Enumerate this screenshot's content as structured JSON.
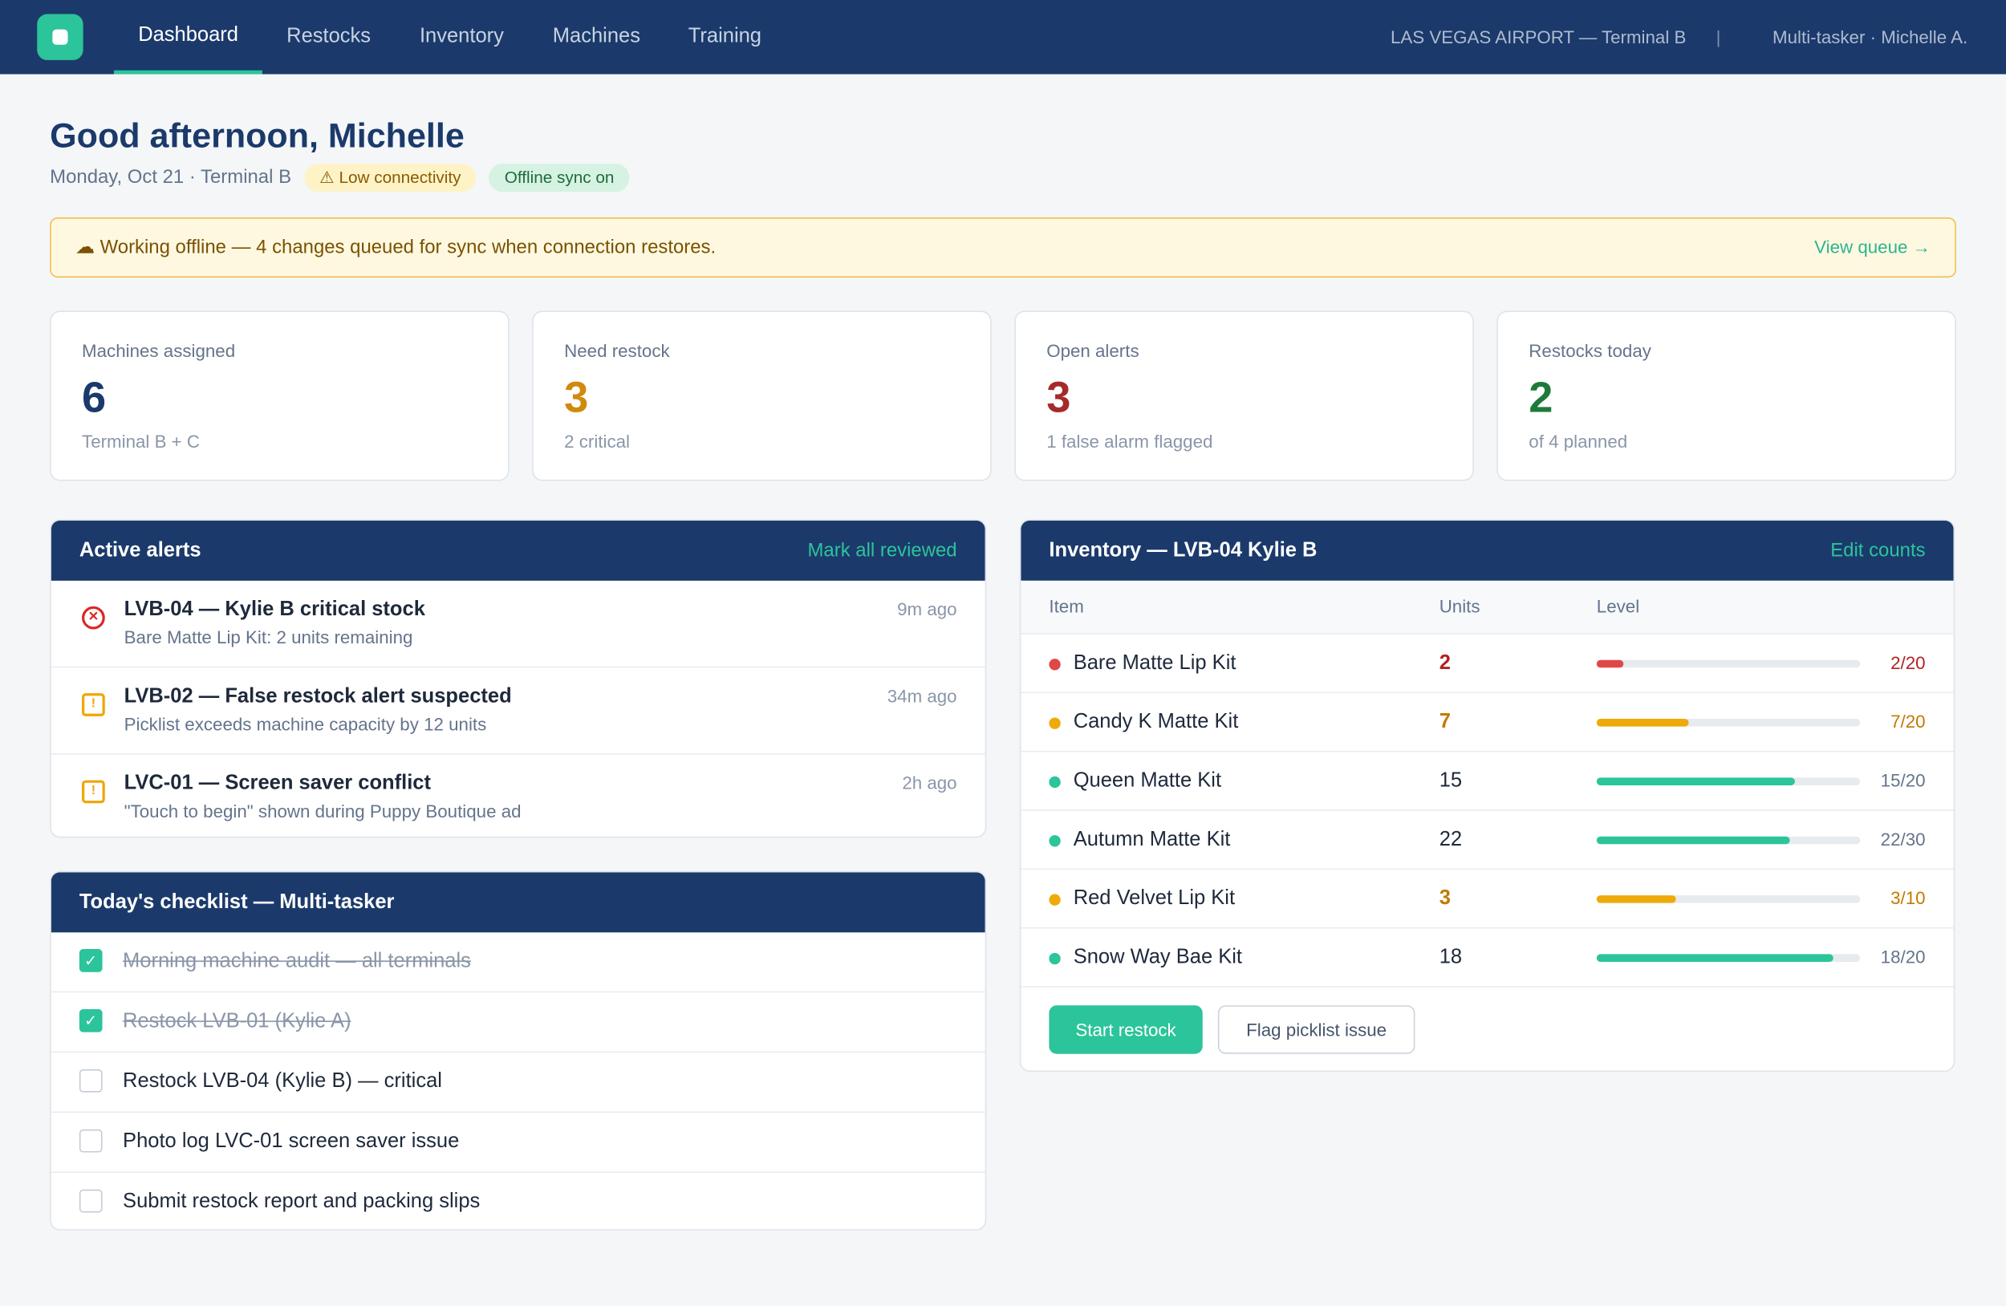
{
  "nav": {
    "tabs": [
      "Dashboard",
      "Restocks",
      "Inventory",
      "Machines",
      "Training"
    ],
    "location": "LAS VEGAS AIRPORT — Terminal B",
    "separator": "|",
    "user": "Multi-tasker · Michelle A."
  },
  "header": {
    "title": "Good afternoon, Michelle",
    "subtitle": "Monday, Oct 21 · Terminal B",
    "badges": [
      {
        "text": "⚠ Low connectivity",
        "color": "#fdf3c7",
        "text_color": "#8a5a00"
      },
      {
        "text": "Offline sync on",
        "color": "#d6f2e2",
        "text_color": "#1f6b3a"
      }
    ]
  },
  "banner": {
    "text": "☁ Working offline — 4 changes queued for sync when connection restores.",
    "link": "View queue →"
  },
  "stats": [
    {
      "label": "Machines assigned",
      "value": 6,
      "note": "Terminal B + C",
      "color": "#1b3a6b"
    },
    {
      "label": "Need restock",
      "value": 3,
      "note": "2 critical",
      "color": "#d08a0c"
    },
    {
      "label": "Open alerts",
      "value": 3,
      "note": "1 false alarm flagged",
      "color": "#a52a2a"
    },
    {
      "label": "Restocks today",
      "value": 2,
      "note": "of 4 planned",
      "color": "#1f7a3a"
    }
  ],
  "alerts": {
    "title": "Active alerts",
    "action": "Mark all reviewed",
    "items": [
      {
        "title": "LVB-04 — Kylie B critical stock",
        "detail": "Bare Matte Lip Kit: 2 units remaining",
        "time": "9m ago",
        "icon": "✕",
        "color": "#dc2626"
      },
      {
        "title": "LVB-02 — False restock alert suspected",
        "detail": "Picklist exceeds machine capacity by 12 units",
        "time": "34m ago",
        "icon": "!",
        "color": "#f0a500"
      },
      {
        "title": "LVC-01 — Screen saver conflict",
        "detail": "\"Touch to begin\" shown during Puppy Boutique ad",
        "time": "2h ago",
        "icon": "!",
        "color": "#f0a500"
      }
    ]
  },
  "checklist": {
    "title": "Today's checklist — Multi-tasker",
    "items": [
      {
        "text": "Morning machine audit — all terminals",
        "done": true
      },
      {
        "text": "Restock LVB-01 (Kylie A)",
        "done": true
      },
      {
        "text": "Restock LVB-04 (Kylie B) — critical",
        "done": false
      },
      {
        "text": "Photo log LVC-01 screen saver issue",
        "done": false
      },
      {
        "text": "Submit restock report and packing slips",
        "done": false
      }
    ]
  },
  "inventory": {
    "title": "Inventory — LVB-04 Kylie B",
    "action": "Edit counts",
    "columns": [
      "Item",
      "Units",
      "Level"
    ],
    "rows": [
      {
        "item": "Bare Matte Lip Kit",
        "units": 2,
        "level": "2/20"
      },
      {
        "item": "Candy K Matte Kit",
        "units": 7,
        "level": "7/20"
      },
      {
        "item": "Queen Matte Kit",
        "units": 15,
        "level": "15/20"
      },
      {
        "item": "Autumn Matte Kit",
        "units": 22,
        "level": "22/30"
      },
      {
        "item": "Red Velvet Lip Kit",
        "units": 3,
        "level": "3/10"
      },
      {
        "item": "Snow Way Bae Kit",
        "units": 18,
        "level": "18/20"
      }
    ],
    "buttons": [
      "Start restock",
      "Flag picklist issue"
    ]
  }
}
